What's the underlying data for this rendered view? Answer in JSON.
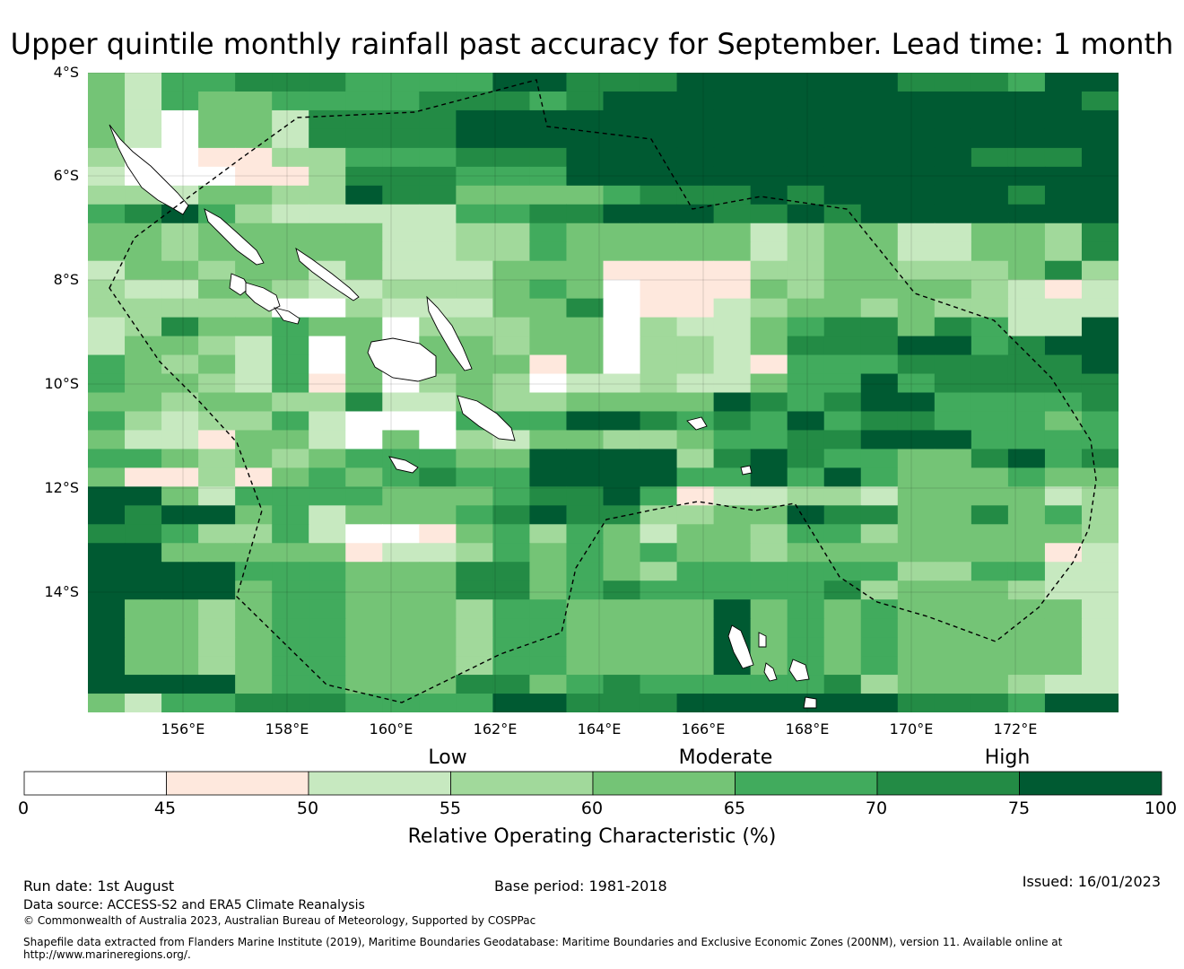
{
  "title": "Upper quintile monthly rainfall past accuracy for September. Lead time: 1 month",
  "map": {
    "lat_labels": [
      "4°S",
      "6°S",
      "8°S",
      "10°S",
      "12°S",
      "14°S"
    ],
    "lon_labels": [
      "156°E",
      "158°E",
      "160°E",
      "162°E",
      "164°E",
      "166°E",
      "168°E",
      "170°E",
      "172°E"
    ],
    "land_color": "#ffffff",
    "boundary_style": "dashed"
  },
  "legend": {
    "categories": [
      "Low",
      "Moderate",
      "High"
    ],
    "tick_labels": [
      "0",
      "45",
      "50",
      "55",
      "60",
      "65",
      "70",
      "75",
      "100"
    ],
    "colors": [
      "#ffffff",
      "#fee8dd",
      "#c7e9c0",
      "#a1d99b",
      "#74c476",
      "#41ab5d",
      "#238b45",
      "#005a32"
    ],
    "axis_label": "Relative Operating Characteristic (%)"
  },
  "chart_data": {
    "type": "heatmap",
    "title": "Upper quintile monthly rainfall past accuracy for September. Lead time: 1 month",
    "xlabel": "",
    "ylabel": "",
    "colorbar_label": "Relative Operating Characteristic (%)",
    "bins": [
      0,
      45,
      50,
      55,
      60,
      65,
      70,
      75,
      100
    ],
    "x_range": [
      "154.2°E",
      "174°E"
    ],
    "y_range": [
      "4°S",
      "16.3°S"
    ],
    "grid_lines": true,
    "rows": [
      "5366777666688777888888777688",
      "5365566667776788888888888887",
      "5315537777888888888888888888",
      "5315537777888888888888888888",
      "4112244666777888888888887778",
      "3111224777666888888888888888",
      "4435544877555567778788888788",
      "6786433333667788877878888888",
      "5545555533446555553455335547",
      "5545555533446555553455335547",
      "3554553533355522224455444574",
      "4335543344456512225455554323",
      "4444411433355712234554544333",
      "3475565504445514335677576338",
      "3554361505545514435777886788",
      "6545360505552514432666777778",
      "6554362504541334335668677777",
      "5545544733544555587678866667",
      "6434463111666887676867766656",
      "5332553151435544566778886666",
      "6654545666558888478766557867",
      "5224256567668888668686555655",
      "8853666655567786233443555534",
      "8788563555678774455877557564",
      "7764463112564653554664555554",
      "8855555233465656554555555523",
      "8888666555775654666666446633",
      "8888566555775676666674555433",
      "8554566555466555585656555553",
      "8554566555466555585656555553",
      "8554566555466555585656555553",
      "8554566555466555585656555553",
      "8888566555775676666674555433",
      "5366777666688777888888777688"
    ]
  },
  "footer": {
    "run_date": "Run date: 1st August",
    "base_period": "Base period: 1981-2018",
    "issued": "Issued: 16/01/2023",
    "data_source": "Data source: ACCESS-S2 and ERA5 Climate Reanalysis",
    "copyright": "© Commonwealth of Australia 2023, Australian Bureau of Meteorology, Supported by COSPPac",
    "shapefile_line1": "Shapefile data extracted from Flanders Marine Institute (2019), Maritime Boundaries Geodatabase: Maritime Boundaries and Exclusive Economic Zones (200NM), version 11. Available online at",
    "shapefile_line2": "http://www.marineregions.org/."
  }
}
